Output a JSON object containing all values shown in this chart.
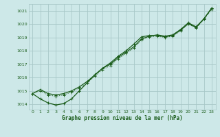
{
  "title": "Graphe pression niveau de la mer (hPa)",
  "bg_color": "#cde8e8",
  "grid_color": "#a8c8c8",
  "line_color": "#1a5c1a",
  "xlim": [
    -0.5,
    23.5
  ],
  "ylim": [
    1013.6,
    1021.5
  ],
  "yticks": [
    1014,
    1015,
    1016,
    1017,
    1018,
    1019,
    1020,
    1021
  ],
  "xticks": [
    0,
    1,
    2,
    3,
    4,
    5,
    6,
    7,
    8,
    9,
    10,
    11,
    12,
    13,
    14,
    15,
    16,
    17,
    18,
    19,
    20,
    21,
    22,
    23
  ],
  "series": [
    {
      "x": [
        0,
        1,
        2,
        3,
        4,
        5,
        6,
        7,
        8,
        9,
        10,
        11,
        12,
        13,
        14,
        15,
        16,
        17,
        18,
        19,
        20,
        21,
        22,
        23
      ],
      "y": [
        1014.8,
        1015.1,
        1014.8,
        1014.7,
        1014.8,
        1015.0,
        1015.3,
        1015.7,
        1016.2,
        1016.7,
        1017.0,
        1017.5,
        1017.9,
        1018.3,
        1018.9,
        1019.1,
        1019.2,
        1019.1,
        1019.2,
        1019.6,
        1020.1,
        1019.8,
        1020.4,
        1021.2
      ],
      "linestyle": "-",
      "marker": "+"
    },
    {
      "x": [
        0,
        1,
        2,
        3,
        4,
        5,
        6,
        7,
        8,
        9,
        10,
        11,
        12,
        13,
        14,
        15,
        16,
        17,
        18,
        19,
        20,
        21,
        22,
        23
      ],
      "y": [
        1014.8,
        1015.0,
        1014.7,
        1014.6,
        1014.7,
        1014.9,
        1015.2,
        1015.6,
        1016.1,
        1016.6,
        1016.9,
        1017.4,
        1017.8,
        1018.2,
        1018.85,
        1019.05,
        1019.1,
        1019.0,
        1019.1,
        1019.5,
        1020.0,
        1019.7,
        1020.35,
        1021.1
      ],
      "linestyle": ":",
      "marker": "+"
    },
    {
      "x": [
        0,
        1,
        2,
        3,
        4,
        5,
        6,
        7,
        8,
        9,
        10,
        11,
        12,
        13,
        14,
        15,
        16,
        17,
        18,
        19,
        20,
        21,
        22,
        23
      ],
      "y": [
        1014.8,
        1014.4,
        1014.1,
        1013.95,
        1014.05,
        1014.4,
        1015.0,
        1015.6,
        1016.2,
        1016.7,
        1017.1,
        1017.6,
        1018.0,
        1018.5,
        1019.05,
        1019.15,
        1019.15,
        1019.05,
        1019.15,
        1019.55,
        1020.05,
        1019.75,
        1020.4,
        1021.2
      ],
      "linestyle": "-",
      "marker": "+"
    }
  ]
}
